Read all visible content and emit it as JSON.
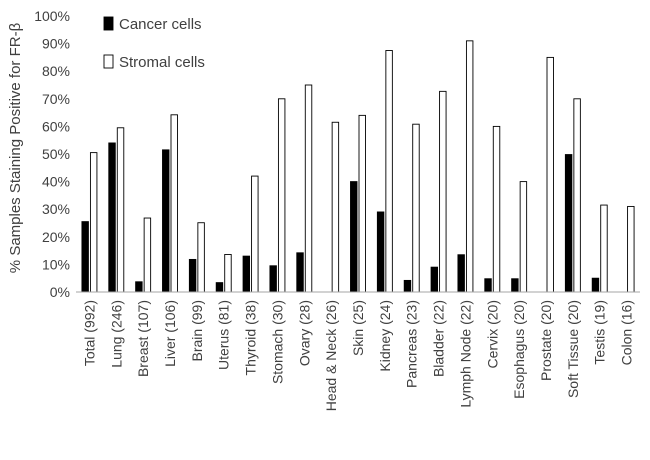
{
  "chart_data": {
    "type": "bar",
    "ylabel": "% Samples Staining Positive for FR-β",
    "ylim": [
      0,
      100
    ],
    "yticks": [
      "0%",
      "10%",
      "20%",
      "30%",
      "40%",
      "50%",
      "60%",
      "70%",
      "80%",
      "90%",
      "100%"
    ],
    "yticks_values": [
      0,
      10,
      20,
      30,
      40,
      50,
      60,
      70,
      80,
      90,
      100
    ],
    "grid": false,
    "legend_position": "top-left",
    "categories": [
      "Total (992)",
      "Lung (246)",
      "Breast (107)",
      "Liver (106)",
      "Brain (99)",
      "Uterus (81)",
      "Thyroid (38)",
      "Stomach (30)",
      "Ovary (28)",
      "Head & Neck (26)",
      "Skin (25)",
      "Kidney (24)",
      "Pancreas (23)",
      "Bladder (22)",
      "Lymph Node (22)",
      "Cervix (20)",
      "Esophagus (20)",
      "Prostate (20)",
      "Soft Tissue (20)",
      "Testis (19)",
      "Colon (16)"
    ],
    "series": [
      {
        "name": "Cancer cells",
        "color": "#000000",
        "values": [
          25.5,
          54,
          3.7,
          51.5,
          11.8,
          3.4,
          13,
          9.5,
          14.2,
          0,
          40,
          29,
          4.2,
          9,
          13.5,
          4.8,
          4.8,
          0,
          49.8,
          5,
          0
        ]
      },
      {
        "name": "Stromal cells",
        "color": "#ffffff",
        "values": [
          50.5,
          59.5,
          26.8,
          64.2,
          25.1,
          13.6,
          42,
          70,
          75,
          61.5,
          64,
          87.5,
          60.8,
          72.7,
          91,
          60,
          40,
          85,
          70,
          31.5,
          31
        ]
      }
    ]
  }
}
